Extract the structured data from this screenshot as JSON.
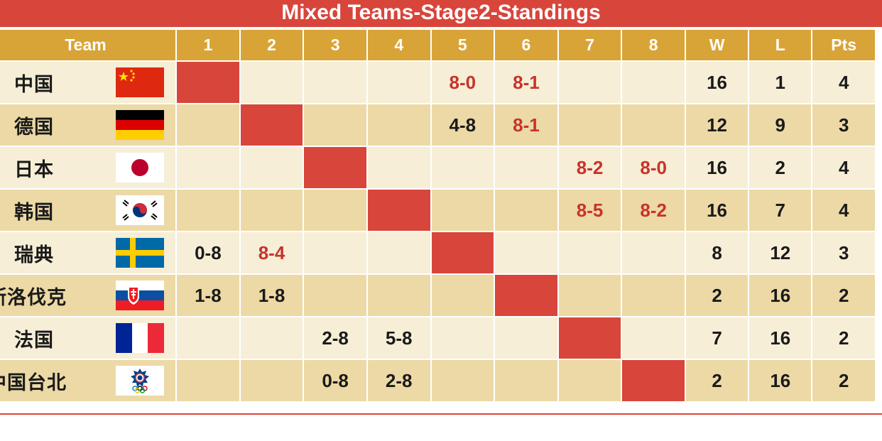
{
  "title": "Mixed Teams-Stage2-Standings",
  "header": [
    "Team",
    "1",
    "2",
    "3",
    "4",
    "5",
    "6",
    "7",
    "8",
    "W",
    "L",
    "Pts"
  ],
  "rows": [
    {
      "team": "中国",
      "flag": "china-flag",
      "cells": [
        "",
        "",
        "",
        "",
        "8-0",
        "8-1",
        "",
        ""
      ],
      "w": "16",
      "l": "1",
      "pts": "4"
    },
    {
      "team": "德国",
      "flag": "germany-flag",
      "cells": [
        "",
        "",
        "",
        "",
        "4-8",
        "8-1",
        "",
        ""
      ],
      "w": "12",
      "l": "9",
      "pts": "3"
    },
    {
      "team": "日本",
      "flag": "japan-flag",
      "cells": [
        "",
        "",
        "",
        "",
        "",
        "",
        "8-2",
        "8-0"
      ],
      "w": "16",
      "l": "2",
      "pts": "4"
    },
    {
      "team": "韩国",
      "flag": "korea-flag",
      "cells": [
        "",
        "",
        "",
        "",
        "",
        "",
        "8-5",
        "8-2"
      ],
      "w": "16",
      "l": "7",
      "pts": "4"
    },
    {
      "team": "瑞典",
      "flag": "sweden-flag",
      "cells": [
        "0-8",
        "8-4",
        "",
        "",
        "",
        "",
        "",
        ""
      ],
      "w": "8",
      "l": "12",
      "pts": "3"
    },
    {
      "team": "斯洛伐克",
      "flag": "slovakia-flag",
      "cells": [
        "1-8",
        "1-8",
        "",
        "",
        "",
        "",
        "",
        ""
      ],
      "w": "2",
      "l": "16",
      "pts": "2"
    },
    {
      "team": "法国",
      "flag": "france-flag",
      "cells": [
        "",
        "",
        "2-8",
        "5-8",
        "",
        "",
        "",
        ""
      ],
      "w": "7",
      "l": "16",
      "pts": "2"
    },
    {
      "team": "中国台北",
      "flag": "chinese-taipei-flag",
      "cells": [
        "",
        "",
        "0-8",
        "2-8",
        "",
        "",
        "",
        ""
      ],
      "w": "2",
      "l": "16",
      "pts": "2"
    }
  ],
  "colors": {
    "title_bg": "#d8453b",
    "header_bg": "#d9a437",
    "row_light": "#f6eed6",
    "row_dark": "#ecd9a5",
    "diagonal": "#d8453b",
    "win_text": "#c8332b"
  }
}
